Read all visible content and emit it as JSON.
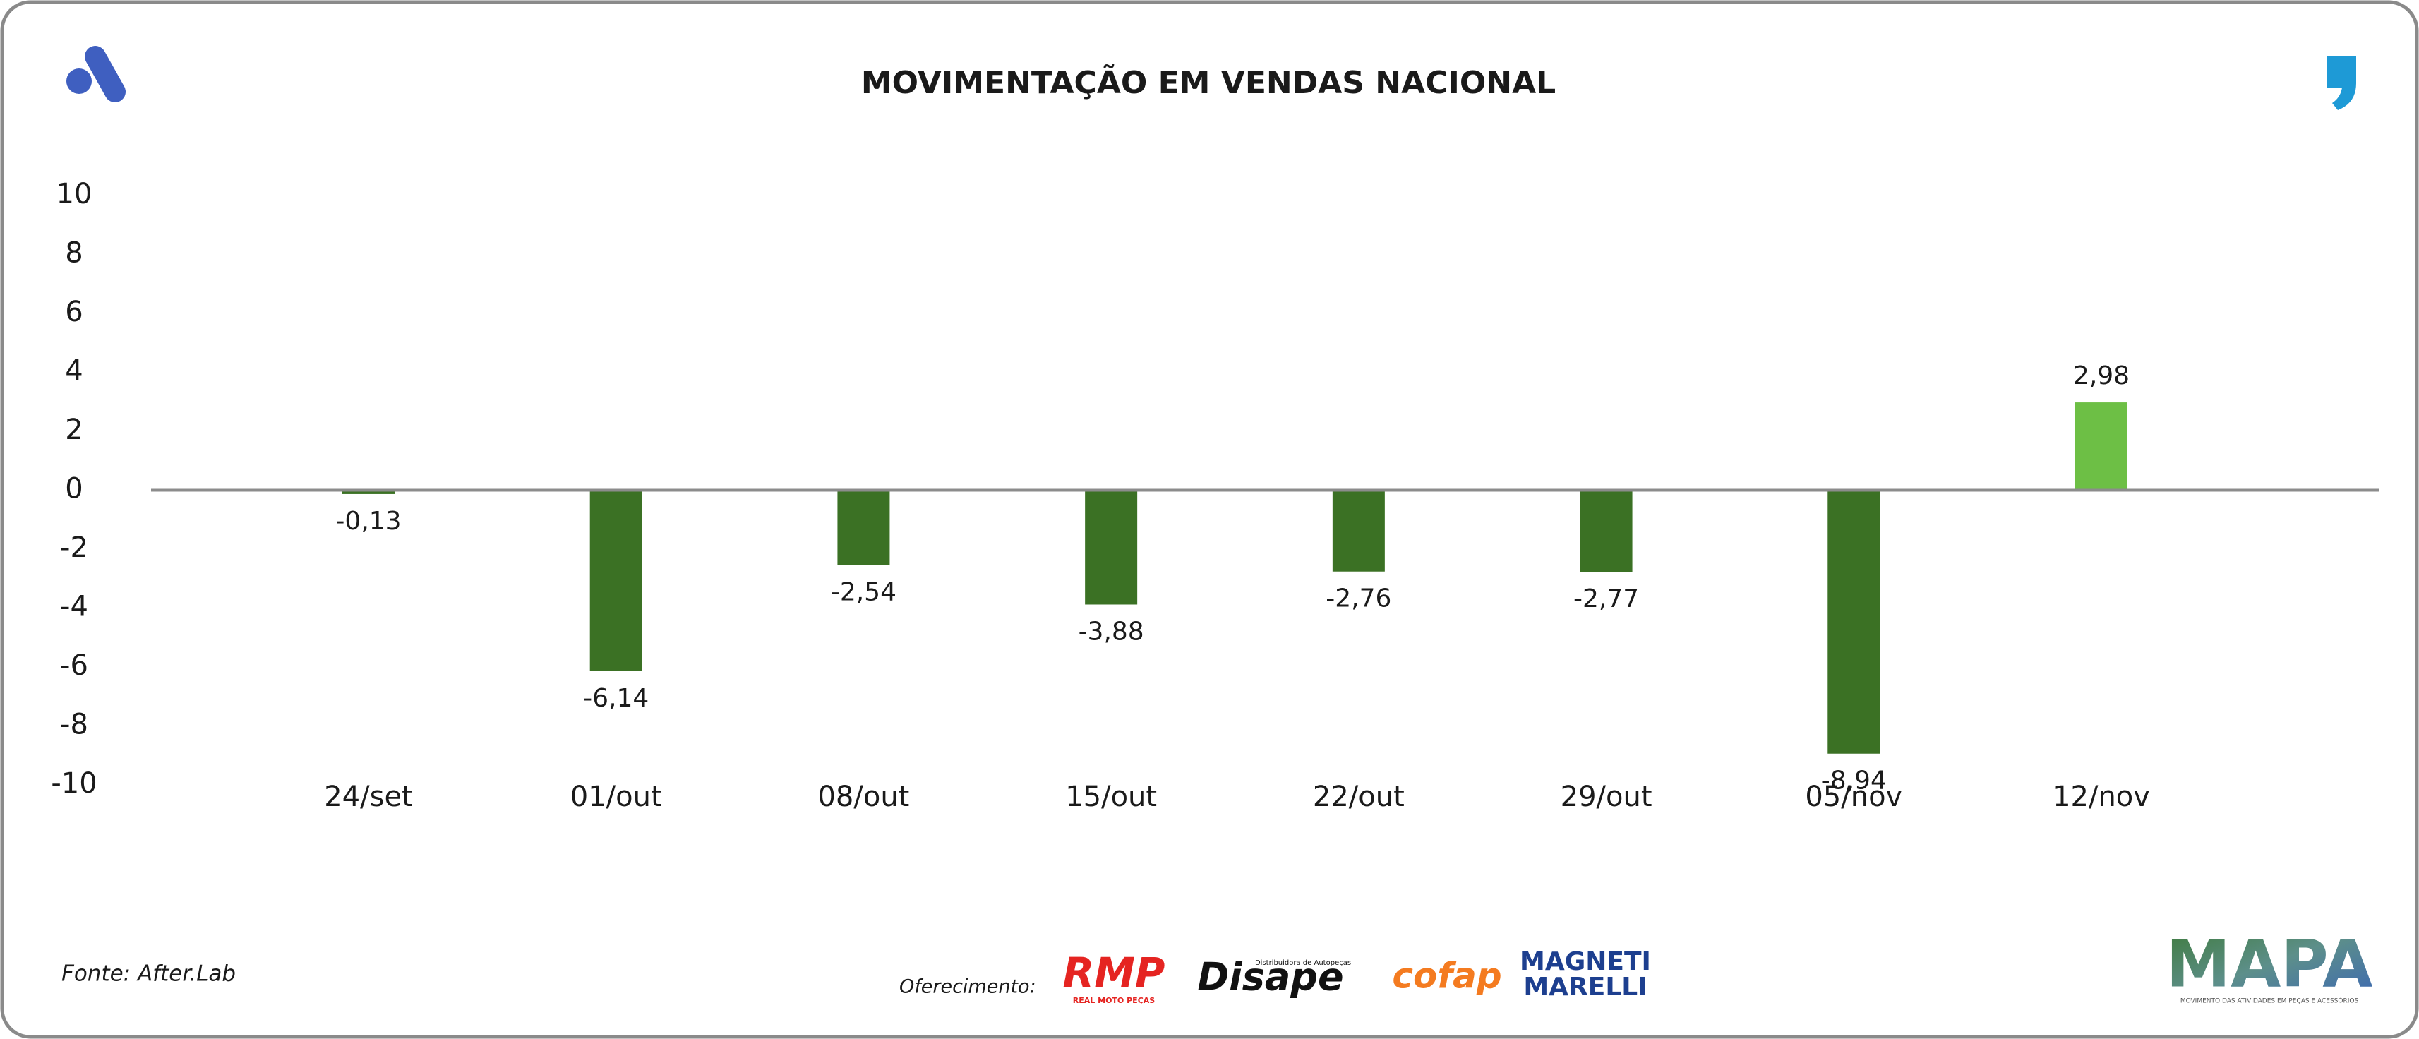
{
  "chart_data": {
    "type": "bar",
    "title": "MOVIMENTAÇÃO EM VENDAS NACIONAL",
    "categories": [
      "24/set",
      "01/out",
      "08/out",
      "15/out",
      "22/out",
      "29/out",
      "05/nov",
      "12/nov"
    ],
    "values": [
      -0.13,
      -6.14,
      -2.54,
      -3.88,
      -2.76,
      -2.77,
      -8.94,
      2.98
    ],
    "value_labels": [
      "-0,13",
      "-6,14",
      "-2,54",
      "-3,88",
      "-2,76",
      "-2,77",
      "-8,94",
      "2,98"
    ],
    "colors": [
      "#3b7124",
      "#3b7124",
      "#3b7124",
      "#3b7124",
      "#3b7124",
      "#3b7124",
      "#3b7124",
      "#6dbf45"
    ],
    "ylim": [
      -10,
      10
    ],
    "yticks": [
      -10,
      -8,
      -6,
      -4,
      -2,
      0,
      2,
      4,
      6,
      8,
      10
    ],
    "grid": false
  },
  "source": "Fonte: After.Lab",
  "sponsor_label": "Oferecimento:",
  "sponsors": [
    {
      "name": "RMP",
      "tagline": "REAL MOTO PEÇAS"
    },
    {
      "name": "Disape",
      "tagline": "Distribuidora de Autopeças"
    },
    {
      "name": "cofap"
    },
    {
      "name": "MAGNETI",
      "tagline": "MARELLI"
    }
  ],
  "brand": {
    "name": "MAPA",
    "tagline": "MOVIMENTO DAS ATIVIDADES EM PEÇAS E ACESSÓRIOS"
  }
}
